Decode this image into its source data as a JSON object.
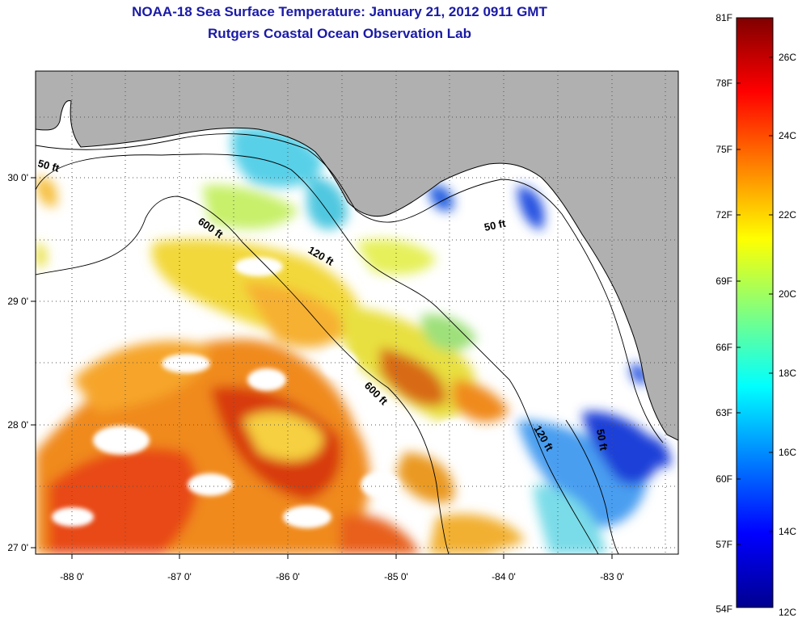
{
  "title": "NOAA-18 Sea Surface Temperature:  January 21, 2012 0911 GMT",
  "subtitle": "Rutgers Coastal Ocean Observation Lab",
  "map": {
    "lon_ticks": [
      "-88 0'",
      "-87 0'",
      "-86 0'",
      "-85 0'",
      "-84 0'",
      "-83 0'"
    ],
    "lat_ticks": [
      "30 0'",
      "29 0'",
      "28 0'",
      "27 0'"
    ],
    "contour_labels": [
      "50 ft",
      "600 ft",
      "120 ft",
      "50 ft",
      "600 ft",
      "120 ft",
      "50 ft"
    ],
    "colors": {
      "land": "#b0b0b0",
      "cloud": "#ffffff",
      "border": "#000000"
    }
  },
  "colorbar": {
    "fahrenheit": [
      "81F",
      "78F",
      "75F",
      "72F",
      "69F",
      "66F",
      "63F",
      "60F",
      "57F",
      "54F"
    ],
    "celsius": [
      "26C",
      "24C",
      "22C",
      "20C",
      "18C",
      "16C",
      "14C",
      "12C"
    ]
  }
}
